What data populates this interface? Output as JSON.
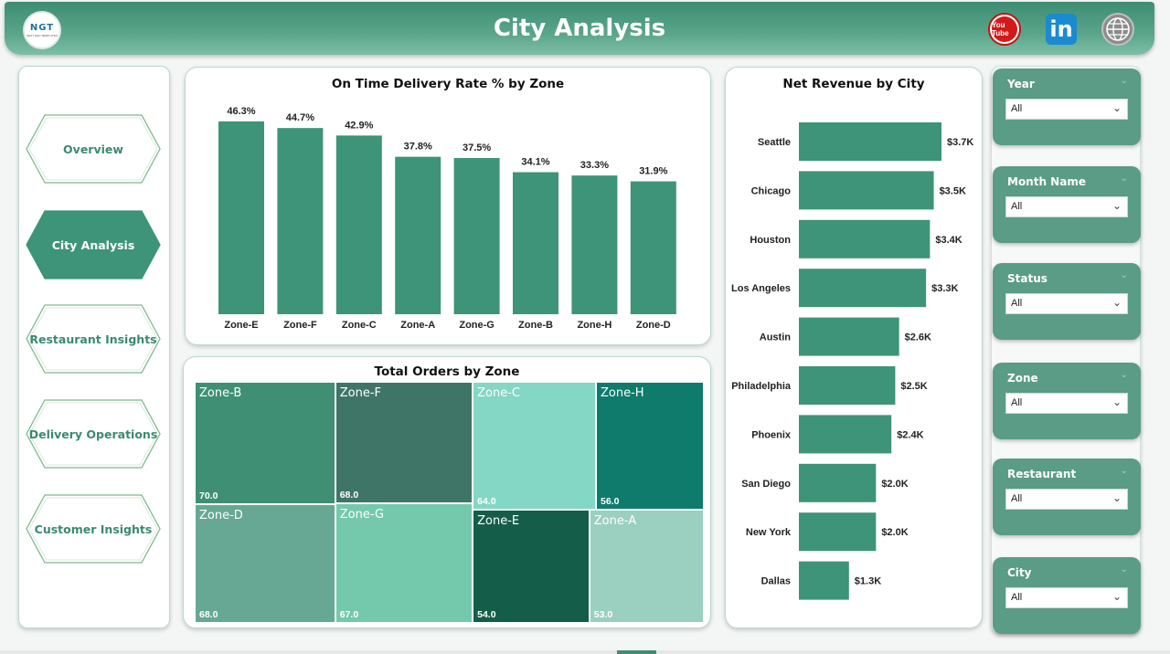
{
  "header": {
    "title": "City Analysis",
    "logo_text": "NGT",
    "logo_subtext": "NEXT GEN TEMPLATES",
    "youtube_label": "You Tube",
    "linkedin_label": "in"
  },
  "nav": {
    "items": [
      {
        "label": "Overview",
        "active": false
      },
      {
        "label": "City Analysis",
        "active": true
      },
      {
        "label": "Restaurant Insights",
        "active": false
      },
      {
        "label": "Delivery Operations",
        "active": false
      },
      {
        "label": "Customer Insights",
        "active": false
      }
    ]
  },
  "colors": {
    "accent": "#3d9478",
    "header": "#4e9b80"
  },
  "delivery_chart": {
    "title": "On Time Delivery Rate % by Zone"
  },
  "treemap": {
    "title": "Total Orders by Zone"
  },
  "revenue_chart": {
    "title": "Net Revenue by City"
  },
  "slicers": [
    {
      "label": "Year",
      "value": "All"
    },
    {
      "label": "Month Name",
      "value": "All"
    },
    {
      "label": "Status",
      "value": "All"
    },
    {
      "label": "Zone",
      "value": "All"
    },
    {
      "label": "Restaurant",
      "value": "All"
    },
    {
      "label": "City",
      "value": "All"
    }
  ],
  "chart_data": [
    {
      "type": "bar",
      "title": "On Time Delivery Rate % by Zone",
      "categories": [
        "Zone-E",
        "Zone-F",
        "Zone-C",
        "Zone-A",
        "Zone-G",
        "Zone-B",
        "Zone-H",
        "Zone-D"
      ],
      "values": [
        46.3,
        44.7,
        42.9,
        37.8,
        37.5,
        34.1,
        33.3,
        31.9
      ],
      "data_labels": [
        "46.3%",
        "44.7%",
        "42.9%",
        "37.8%",
        "37.5%",
        "34.1%",
        "33.3%",
        "31.9%"
      ],
      "ylim": [
        0,
        50
      ],
      "grid": false
    },
    {
      "type": "heatmap",
      "subtype": "treemap",
      "title": "Total Orders by Zone",
      "categories": [
        "Zone-B",
        "Zone-F",
        "Zone-C",
        "Zone-H",
        "Zone-D",
        "Zone-G",
        "Zone-E",
        "Zone-A"
      ],
      "values": [
        70.0,
        68.0,
        64.0,
        56.0,
        68.0,
        67.0,
        54.0,
        53.0
      ],
      "data_labels": [
        "70.0",
        "68.0",
        "64.0",
        "56.0",
        "68.0",
        "67.0",
        "54.0",
        "53.0"
      ],
      "colors": [
        "#3f8f75",
        "#3f7566",
        "#84d6c5",
        "#0f7b6d",
        "#66a894",
        "#74c9ac",
        "#145e49",
        "#9bcfbf"
      ]
    },
    {
      "type": "bar",
      "orientation": "horizontal",
      "title": "Net Revenue by City",
      "categories": [
        "Seattle",
        "Chicago",
        "Houston",
        "Los Angeles",
        "Austin",
        "Philadelphia",
        "Phoenix",
        "San Diego",
        "New York",
        "Dallas"
      ],
      "values": [
        3.7,
        3.5,
        3.4,
        3.3,
        2.6,
        2.5,
        2.4,
        2.0,
        2.0,
        1.3
      ],
      "data_labels": [
        "$3.7K",
        "$3.5K",
        "$3.4K",
        "$3.3K",
        "$2.6K",
        "$2.5K",
        "$2.4K",
        "$2.0K",
        "$2.0K",
        "$1.3K"
      ],
      "unit": "K",
      "xlim": [
        0,
        3.7
      ],
      "grid": false
    }
  ]
}
